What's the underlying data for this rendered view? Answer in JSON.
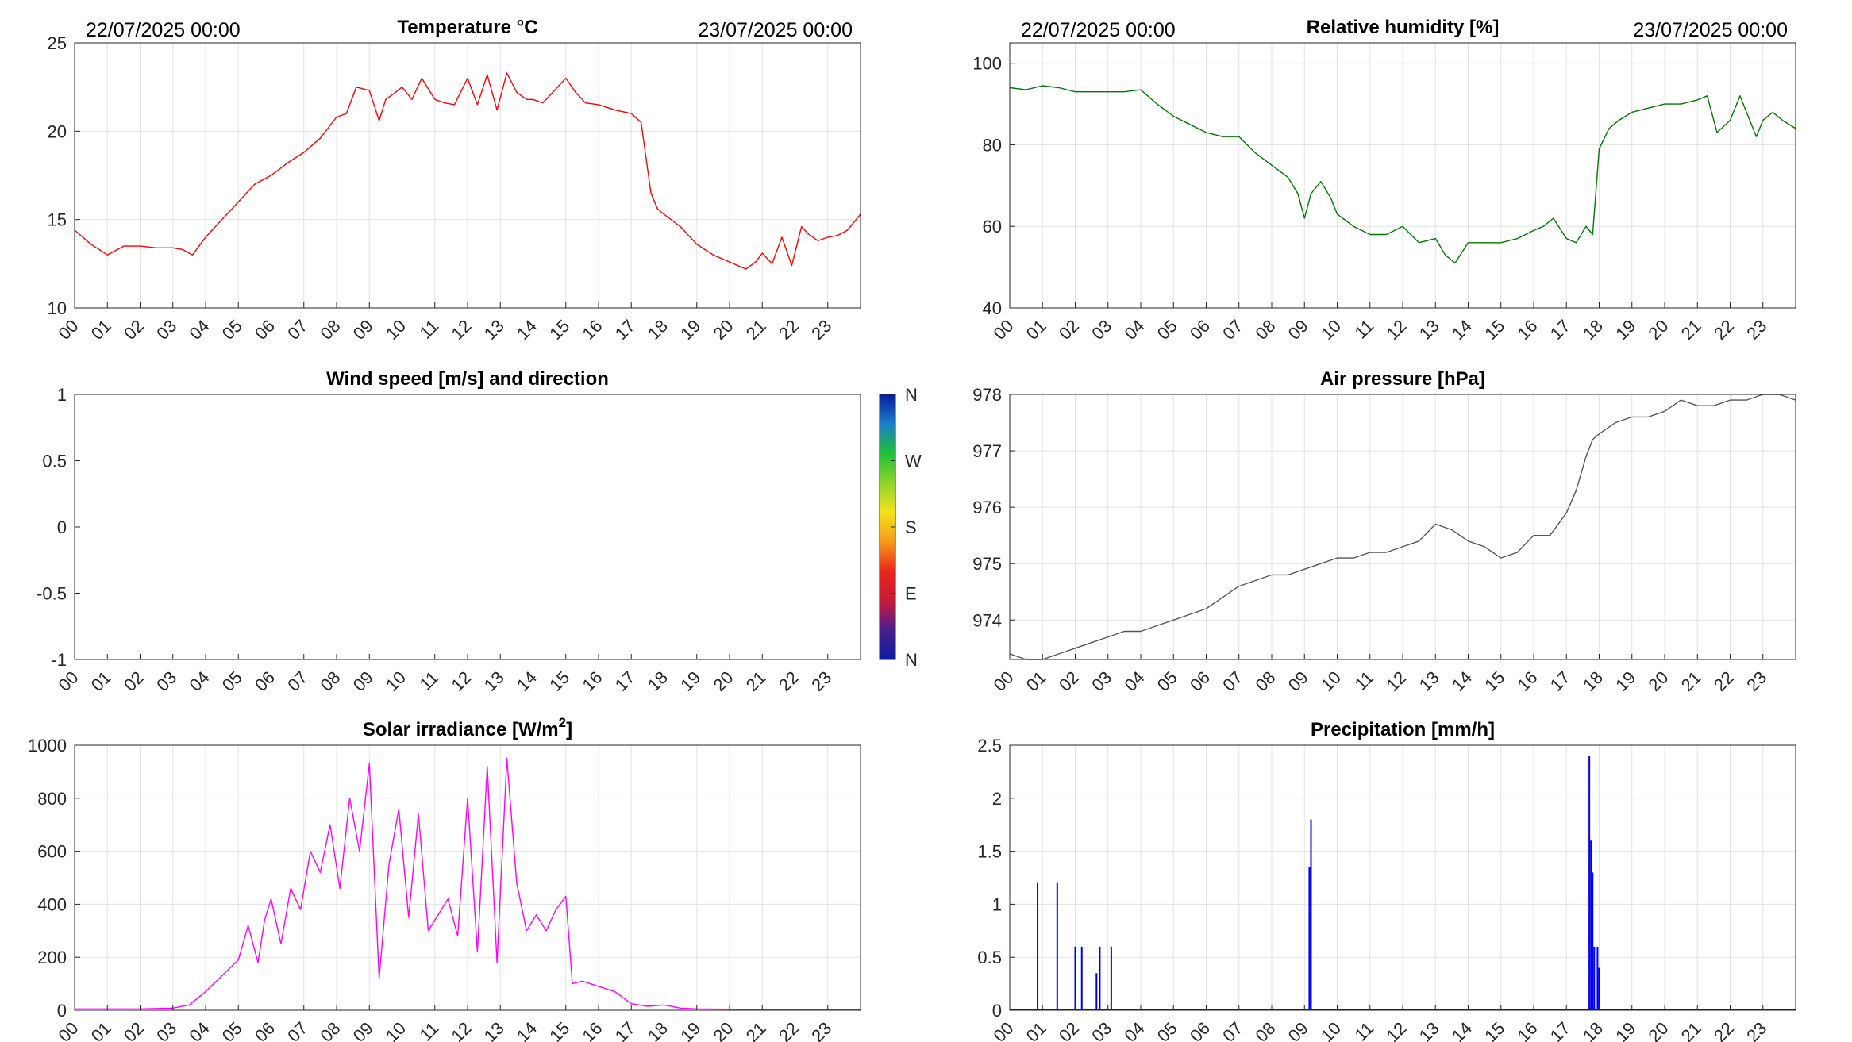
{
  "figure": {
    "panels": [
      {
        "id": "temperature",
        "title": "Temperature °C",
        "date_left": "22/07/2025 00:00",
        "date_right": "23/07/2025 00:00"
      },
      {
        "id": "humidity",
        "title": "Relative humidity [%]",
        "date_left": "22/07/2025 00:00",
        "date_right": "23/07/2025 00:00"
      },
      {
        "id": "wind",
        "title": "Wind speed [m/s] and direction"
      },
      {
        "id": "pressure",
        "title": "Air pressure [hPa]"
      },
      {
        "id": "solar",
        "title": "Solar irradiance [W/m",
        "title_sup": "2",
        "title_end": "]"
      },
      {
        "id": "precip",
        "title": "Precipitation [mm/h]"
      }
    ],
    "x_tick_labels": [
      "00",
      "01",
      "02",
      "03",
      "04",
      "05",
      "06",
      "07",
      "08",
      "09",
      "10",
      "11",
      "12",
      "13",
      "14",
      "15",
      "16",
      "17",
      "18",
      "19",
      "20",
      "21",
      "22",
      "23"
    ],
    "wind_colorbar": {
      "labels": [
        "N",
        "W",
        "S",
        "E",
        "N"
      ],
      "colors": [
        "#0a1c9c",
        "#1a7ec8",
        "#1fbf3a",
        "#8fd42a",
        "#f5e21a",
        "#f59a1a",
        "#e8261a",
        "#c81a3a",
        "#4a1f8c",
        "#0a1c9c"
      ]
    }
  },
  "chart_data": [
    {
      "type": "line",
      "title": "Temperature °C",
      "xlabel": "",
      "ylabel": "",
      "x_unit": "hour of day",
      "xlim": [
        0,
        24
      ],
      "ylim": [
        10,
        25
      ],
      "yticks": [
        10,
        15,
        20,
        25
      ],
      "grid": true,
      "series": [
        {
          "color": "#ff0000",
          "x": [
            0,
            0.5,
            1,
            1.5,
            2,
            2.5,
            3,
            3.3,
            3.6,
            4,
            4.5,
            5,
            5.5,
            6,
            6.5,
            7,
            7.5,
            8,
            8.3,
            8.6,
            9,
            9.3,
            9.5,
            9.8,
            10,
            10.3,
            10.6,
            11,
            11.3,
            11.6,
            12,
            12.3,
            12.6,
            12.9,
            13.2,
            13.5,
            13.8,
            14,
            14.3,
            14.6,
            15,
            15.3,
            15.6,
            16,
            16.5,
            17,
            17.3,
            17.6,
            17.8,
            18,
            18.5,
            19,
            19.5,
            20,
            20.5,
            20.8,
            21,
            21.3,
            21.6,
            21.9,
            22.2,
            22.4,
            22.7,
            23,
            23.3,
            23.6,
            24
          ],
          "y": [
            14.4,
            13.6,
            13.0,
            13.5,
            13.5,
            13.4,
            13.4,
            13.3,
            13.0,
            14.0,
            15.0,
            16.0,
            17.0,
            17.5,
            18.2,
            18.8,
            19.6,
            20.8,
            21.0,
            22.5,
            22.3,
            20.6,
            21.8,
            22.2,
            22.5,
            21.8,
            23.0,
            21.8,
            21.6,
            21.5,
            23.0,
            21.5,
            23.2,
            21.2,
            23.3,
            22.2,
            21.8,
            21.8,
            21.6,
            22.2,
            23.0,
            22.2,
            21.6,
            21.5,
            21.2,
            21.0,
            20.5,
            16.5,
            15.6,
            15.3,
            14.6,
            13.6,
            13.0,
            12.6,
            12.2,
            12.6,
            13.1,
            12.5,
            14.0,
            12.4,
            14.6,
            14.2,
            13.8,
            14.0,
            14.1,
            14.4,
            15.3
          ]
        }
      ]
    },
    {
      "type": "line",
      "title": "Relative humidity [%]",
      "xlabel": "",
      "ylabel": "",
      "x_unit": "hour of day",
      "xlim": [
        0,
        24
      ],
      "ylim": [
        40,
        105
      ],
      "yticks": [
        40,
        60,
        80,
        100
      ],
      "grid": true,
      "series": [
        {
          "color": "#007700",
          "x": [
            0,
            0.5,
            1,
            1.5,
            2,
            2.5,
            3,
            3.5,
            4,
            4.5,
            5,
            5.5,
            6,
            6.5,
            7,
            7.5,
            8,
            8.5,
            8.8,
            9,
            9.2,
            9.5,
            9.8,
            10,
            10.5,
            11,
            11.5,
            12,
            12.5,
            13,
            13.3,
            13.6,
            14,
            14.5,
            15,
            15.5,
            16,
            16.3,
            16.6,
            17,
            17.3,
            17.6,
            17.8,
            18,
            18.3,
            18.6,
            19,
            19.5,
            20,
            20.5,
            21,
            21.3,
            21.6,
            22,
            22.3,
            22.5,
            22.8,
            23,
            23.3,
            23.6,
            24
          ],
          "y": [
            94,
            93.5,
            94.5,
            94,
            93,
            93,
            93,
            93,
            93.5,
            90,
            87,
            85,
            83,
            82,
            82,
            78,
            75,
            72,
            68,
            62,
            68,
            71,
            67,
            63,
            60,
            58,
            58,
            60,
            56,
            57,
            53,
            51,
            56,
            56,
            56,
            57,
            59,
            60,
            62,
            57,
            56,
            60,
            58,
            79,
            84,
            86,
            88,
            89,
            90,
            90,
            91,
            92,
            83,
            86,
            92,
            88,
            82,
            86,
            88,
            86,
            84
          ]
        }
      ]
    },
    {
      "type": "line",
      "title": "Wind speed [m/s] and direction",
      "xlabel": "",
      "ylabel": "",
      "x_unit": "hour of day",
      "xlim": [
        0,
        24
      ],
      "ylim": [
        -1,
        1
      ],
      "yticks": [
        -1,
        -0.5,
        0,
        0.5,
        1
      ],
      "ytick_labels": [
        "-1",
        "-0.5",
        "0",
        "0.5",
        "1"
      ],
      "grid": false,
      "series": []
    },
    {
      "type": "line",
      "title": "Air pressure [hPa]",
      "xlabel": "",
      "ylabel": "",
      "x_unit": "hour of day",
      "xlim": [
        0,
        24
      ],
      "ylim": [
        973.3,
        978
      ],
      "yticks": [
        974,
        975,
        976,
        977,
        978
      ],
      "grid": true,
      "series": [
        {
          "color": "#555555",
          "x": [
            0,
            0.5,
            1,
            1.5,
            2,
            2.5,
            3,
            3.5,
            4,
            4.5,
            5,
            5.5,
            6,
            6.5,
            7,
            7.5,
            8,
            8.5,
            9,
            9.5,
            10,
            10.5,
            11,
            11.5,
            12,
            12.5,
            13,
            13.5,
            14,
            14.5,
            15,
            15.5,
            16,
            16.5,
            17,
            17.3,
            17.6,
            17.8,
            18,
            18.5,
            19,
            19.5,
            20,
            20.5,
            21,
            21.5,
            22,
            22.5,
            23,
            23.5,
            24
          ],
          "y": [
            973.4,
            973.3,
            973.3,
            973.4,
            973.5,
            973.6,
            973.7,
            973.8,
            973.8,
            973.9,
            974.0,
            974.1,
            974.2,
            974.4,
            974.6,
            974.7,
            974.8,
            974.8,
            974.9,
            975.0,
            975.1,
            975.1,
            975.2,
            975.2,
            975.3,
            975.4,
            975.7,
            975.6,
            975.4,
            975.3,
            975.1,
            975.2,
            975.5,
            975.5,
            975.9,
            976.3,
            976.9,
            977.2,
            977.3,
            977.5,
            977.6,
            977.6,
            977.7,
            977.9,
            977.8,
            977.8,
            977.9,
            977.9,
            978.0,
            978.0,
            977.9
          ]
        }
      ]
    },
    {
      "type": "line",
      "title": "Solar irradiance [W/m2]",
      "xlabel": "",
      "ylabel": "",
      "x_unit": "hour of day",
      "xlim": [
        0,
        24
      ],
      "ylim": [
        0,
        1000
      ],
      "yticks": [
        0,
        200,
        400,
        600,
        800,
        1000
      ],
      "grid": true,
      "series": [
        {
          "color": "#ff00ff",
          "x": [
            0,
            1,
            2,
            3,
            3.5,
            4,
            4.5,
            5,
            5.3,
            5.6,
            5.8,
            6,
            6.3,
            6.6,
            6.9,
            7.2,
            7.5,
            7.8,
            8.1,
            8.4,
            8.7,
            9,
            9.3,
            9.6,
            9.9,
            10.2,
            10.5,
            10.8,
            11.1,
            11.4,
            11.7,
            12,
            12.3,
            12.6,
            12.9,
            13.2,
            13.5,
            13.8,
            14.1,
            14.4,
            14.7,
            15,
            15.2,
            15.5,
            16,
            16.5,
            17,
            17.5,
            18,
            18.5,
            19,
            20,
            21,
            22,
            23,
            24
          ],
          "y": [
            5,
            5,
            5,
            8,
            20,
            70,
            130,
            190,
            320,
            180,
            340,
            420,
            250,
            460,
            380,
            600,
            520,
            700,
            460,
            800,
            600,
            930,
            120,
            550,
            760,
            350,
            740,
            300,
            360,
            420,
            280,
            800,
            220,
            920,
            180,
            950,
            480,
            300,
            360,
            300,
            380,
            430,
            100,
            110,
            90,
            70,
            25,
            15,
            20,
            8,
            5,
            4,
            3,
            3,
            2,
            2
          ]
        }
      ]
    },
    {
      "type": "bar",
      "title": "Precipitation [mm/h]",
      "xlabel": "",
      "ylabel": "",
      "x_unit": "hour of day",
      "xlim": [
        0,
        24
      ],
      "ylim": [
        0,
        2.5
      ],
      "yticks": [
        0,
        0.5,
        1,
        1.5,
        2,
        2.5
      ],
      "grid": true,
      "series": [
        {
          "color": "#0000ee",
          "x": [
            0.85,
            1.45,
            2.0,
            2.2,
            2.65,
            2.75,
            3.1,
            9.15,
            9.2,
            17.7,
            17.75,
            17.8,
            17.85,
            17.95,
            18.0
          ],
          "values": [
            1.2,
            1.2,
            0.6,
            0.6,
            0.35,
            0.6,
            0.6,
            1.35,
            1.8,
            2.4,
            1.6,
            1.3,
            0.6,
            0.6,
            0.4
          ]
        }
      ]
    }
  ]
}
